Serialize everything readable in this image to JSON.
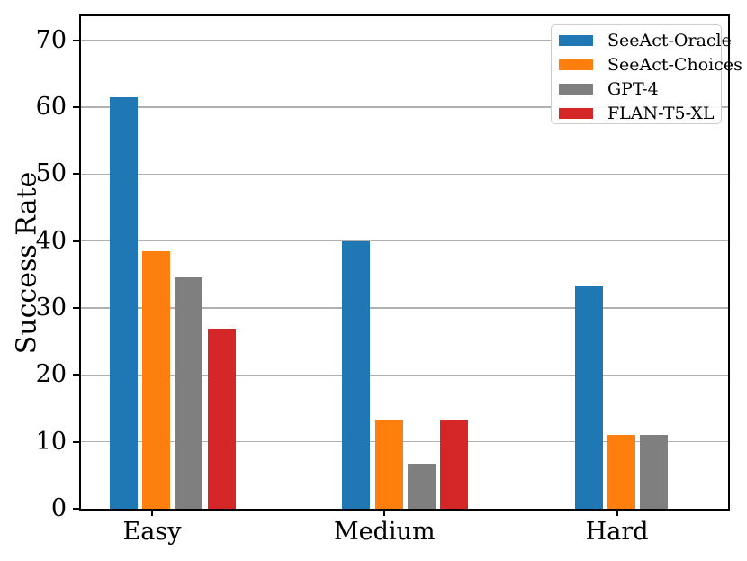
{
  "figure": {
    "background": "#ffffff",
    "frame_color": "#000000"
  },
  "chart_data": {
    "type": "bar",
    "title": "",
    "xlabel": "",
    "ylabel": "Success Rate",
    "categories": [
      "Easy",
      "Medium",
      "Hard"
    ],
    "series": [
      {
        "name": "SeeAct-Oracle",
        "color": "#1f77b4",
        "values": [
          61.5,
          40.0,
          33.3
        ]
      },
      {
        "name": "SeeAct-Choices",
        "color": "#ff7f0e",
        "values": [
          38.5,
          13.3,
          11.1
        ]
      },
      {
        "name": "GPT-4",
        "color": "#7f7f7f",
        "values": [
          34.6,
          6.7,
          11.1
        ]
      },
      {
        "name": "FLAN-T5-XL",
        "color": "#d62728",
        "values": [
          26.9,
          13.3,
          0.0
        ]
      }
    ],
    "yticks": [
      0,
      10,
      20,
      30,
      40,
      50,
      60,
      70
    ],
    "ylim": [
      0,
      73.6
    ],
    "grid": true,
    "grid_color": "#b0b0b0",
    "legend_position": "upper right"
  }
}
